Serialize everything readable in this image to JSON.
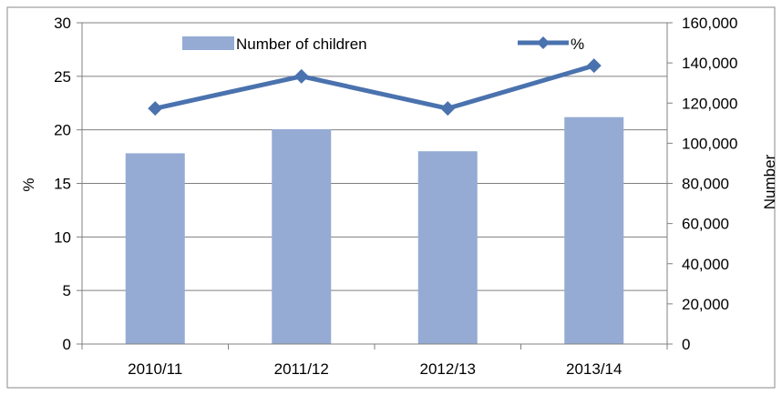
{
  "chart_data": {
    "type": "bar+line",
    "categories": [
      "2010/11",
      "2011/12",
      "2012/13",
      "2013/14"
    ],
    "series": [
      {
        "name": "Number of children",
        "type": "bar",
        "axis": "right",
        "values": [
          95000,
          107000,
          96000,
          113000
        ],
        "color": "#95ABD4"
      },
      {
        "name": "%",
        "type": "line",
        "axis": "left",
        "values": [
          22,
          25,
          22,
          26
        ],
        "color": "#4A72AE"
      }
    ],
    "y_left": {
      "label": "%",
      "lim": [
        0,
        30
      ],
      "ticks": [
        "0",
        "5",
        "10",
        "15",
        "20",
        "25",
        "30"
      ]
    },
    "y_right": {
      "label": "Number",
      "lim": [
        0,
        160000
      ],
      "ticks": [
        "0",
        "20,000",
        "40,000",
        "60,000",
        "80,000",
        "100,000",
        "120,000",
        "140,000",
        "160,000"
      ]
    },
    "grid": true,
    "legend_position": "top-center",
    "colors": {
      "gridline": "#808080",
      "frame": "#808080"
    }
  }
}
